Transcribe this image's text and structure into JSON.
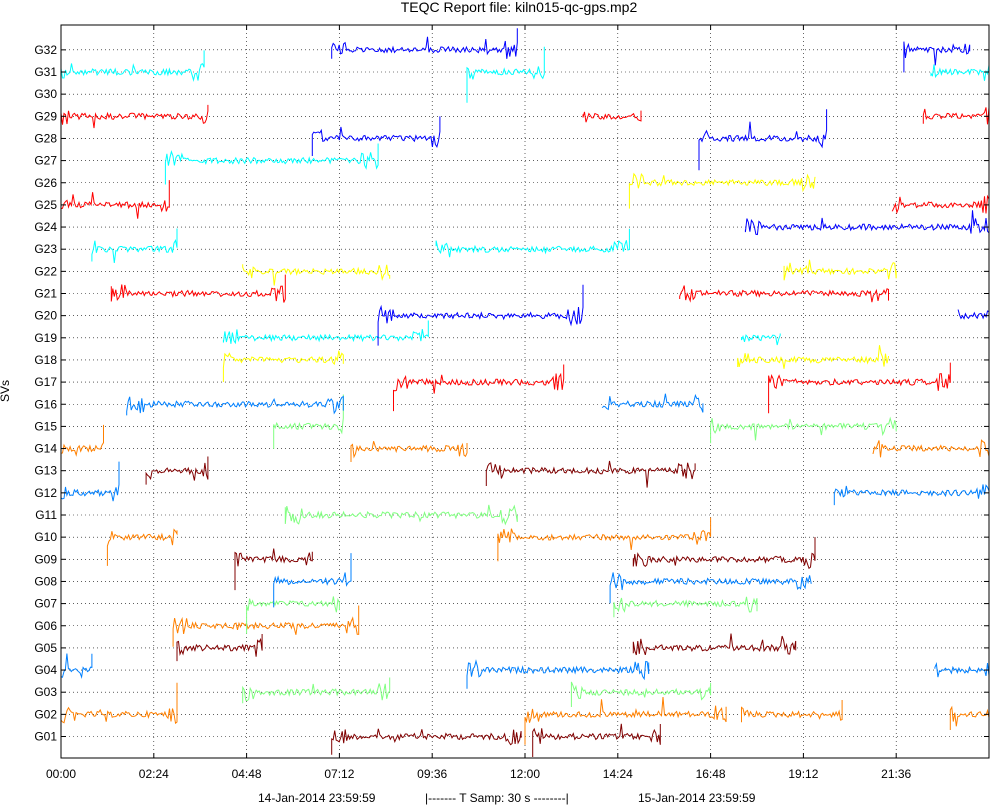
{
  "chart_data": {
    "type": "line",
    "title": "TEQC Report file: kiln015-qc-gps.mp2",
    "xlabel": "",
    "ylabel": "SVs",
    "grid": true,
    "x_range_hours": [
      0,
      24
    ],
    "x_ticks": [
      {
        "hour": 0,
        "label": "00:00"
      },
      {
        "hour": 2.4,
        "label": "02:24"
      },
      {
        "hour": 4.8,
        "label": "04:48"
      },
      {
        "hour": 7.2,
        "label": "07:12"
      },
      {
        "hour": 9.6,
        "label": "09:36"
      },
      {
        "hour": 12.0,
        "label": "12:00"
      },
      {
        "hour": 14.4,
        "label": "14:24"
      },
      {
        "hour": 16.8,
        "label": "16:48"
      },
      {
        "hour": 19.2,
        "label": "19:12"
      },
      {
        "hour": 21.6,
        "label": "21:36"
      }
    ],
    "y_labels": [
      "G01",
      "G02",
      "G03",
      "G04",
      "G05",
      "G06",
      "G07",
      "G08",
      "G09",
      "G10",
      "G11",
      "G12",
      "G13",
      "G14",
      "G15",
      "G16",
      "G17",
      "G18",
      "G19",
      "G20",
      "G21",
      "G22",
      "G23",
      "G24",
      "G25",
      "G26",
      "G27",
      "G28",
      "G29",
      "G30",
      "G31",
      "G32"
    ],
    "series": [
      {
        "name": "G01",
        "color": "#800000",
        "segments": [
          [
            7.0,
            11.9
          ],
          [
            12.2,
            15.5
          ]
        ]
      },
      {
        "name": "G02",
        "color": "#ff8000",
        "segments": [
          [
            0.0,
            3.0
          ],
          [
            12.0,
            17.2
          ],
          [
            17.6,
            20.2
          ],
          [
            23.0,
            24.0
          ]
        ]
      },
      {
        "name": "G03",
        "color": "#80ff80",
        "segments": [
          [
            4.7,
            8.5
          ],
          [
            13.2,
            16.8
          ]
        ]
      },
      {
        "name": "G04",
        "color": "#0080ff",
        "segments": [
          [
            0.0,
            0.8
          ],
          [
            10.5,
            15.2
          ],
          [
            22.6,
            24.0
          ]
        ]
      },
      {
        "name": "G05",
        "color": "#800000",
        "segments": [
          [
            3.0,
            5.2
          ],
          [
            14.8,
            19.0
          ]
        ]
      },
      {
        "name": "G06",
        "color": "#ff8000",
        "segments": [
          [
            2.9,
            7.7
          ]
        ]
      },
      {
        "name": "G07",
        "color": "#80ff80",
        "segments": [
          [
            4.8,
            7.2
          ],
          [
            14.3,
            18.0
          ]
        ]
      },
      {
        "name": "G08",
        "color": "#0080ff",
        "segments": [
          [
            5.5,
            7.5
          ],
          [
            14.2,
            19.4
          ]
        ]
      },
      {
        "name": "G09",
        "color": "#800000",
        "segments": [
          [
            4.5,
            6.5
          ],
          [
            14.8,
            19.5
          ]
        ]
      },
      {
        "name": "G10",
        "color": "#ff8000",
        "segments": [
          [
            1.2,
            3.0
          ],
          [
            11.3,
            16.8
          ]
        ]
      },
      {
        "name": "G11",
        "color": "#80ff80",
        "segments": [
          [
            5.8,
            11.8
          ]
        ]
      },
      {
        "name": "G12",
        "color": "#0080ff",
        "segments": [
          [
            0.0,
            1.5
          ],
          [
            20.0,
            24.0
          ]
        ]
      },
      {
        "name": "G13",
        "color": "#800000",
        "segments": [
          [
            2.2,
            3.8
          ],
          [
            11.0,
            16.4
          ]
        ]
      },
      {
        "name": "G14",
        "color": "#ff8000",
        "segments": [
          [
            0.0,
            1.1
          ],
          [
            7.5,
            10.5
          ],
          [
            21.0,
            24.0
          ]
        ]
      },
      {
        "name": "G15",
        "color": "#80ff80",
        "segments": [
          [
            5.5,
            7.3
          ],
          [
            16.8,
            21.6
          ]
        ]
      },
      {
        "name": "G16",
        "color": "#0080ff",
        "segments": [
          [
            1.7,
            7.3
          ],
          [
            14.0,
            16.6
          ]
        ]
      },
      {
        "name": "G17",
        "color": "#ff0000",
        "segments": [
          [
            8.6,
            13.0
          ],
          [
            18.3,
            23.0
          ]
        ]
      },
      {
        "name": "G18",
        "color": "#ffff00",
        "segments": [
          [
            4.2,
            7.3
          ],
          [
            17.5,
            21.4
          ]
        ]
      },
      {
        "name": "G19",
        "color": "#00ffff",
        "segments": [
          [
            4.2,
            9.5
          ],
          [
            17.6,
            18.6
          ]
        ]
      },
      {
        "name": "G20",
        "color": "#0000ff",
        "segments": [
          [
            8.2,
            13.5
          ],
          [
            23.2,
            24.0
          ]
        ]
      },
      {
        "name": "G21",
        "color": "#ff0000",
        "segments": [
          [
            1.3,
            5.8
          ],
          [
            16.0,
            21.4
          ]
        ]
      },
      {
        "name": "G22",
        "color": "#ffff00",
        "segments": [
          [
            4.7,
            8.5
          ],
          [
            18.7,
            21.6
          ]
        ]
      },
      {
        "name": "G23",
        "color": "#00ffff",
        "segments": [
          [
            0.8,
            3.0
          ],
          [
            9.7,
            14.7
          ]
        ]
      },
      {
        "name": "G24",
        "color": "#0000ff",
        "segments": [
          [
            17.7,
            24.0
          ]
        ]
      },
      {
        "name": "G25",
        "color": "#ff0000",
        "segments": [
          [
            0.0,
            2.8
          ],
          [
            21.5,
            24.0
          ]
        ]
      },
      {
        "name": "G26",
        "color": "#ffff00",
        "segments": [
          [
            14.7,
            19.5
          ]
        ]
      },
      {
        "name": "G27",
        "color": "#00ffff",
        "segments": [
          [
            2.7,
            8.2
          ]
        ]
      },
      {
        "name": "G28",
        "color": "#0000ff",
        "segments": [
          [
            6.5,
            9.8
          ],
          [
            16.5,
            19.8
          ]
        ]
      },
      {
        "name": "G29",
        "color": "#ff0000",
        "segments": [
          [
            0.0,
            3.8
          ],
          [
            13.5,
            15.0
          ],
          [
            22.3,
            24.0
          ]
        ]
      },
      {
        "name": "G30",
        "color": "#ff8000",
        "segments": []
      },
      {
        "name": "G31",
        "color": "#00ffff",
        "segments": [
          [
            0.0,
            3.7
          ],
          [
            10.5,
            12.5
          ],
          [
            22.5,
            24.0
          ]
        ]
      },
      {
        "name": "G32",
        "color": "#0000ff",
        "segments": [
          [
            7.0,
            11.8
          ],
          [
            21.8,
            23.5
          ]
        ]
      }
    ],
    "footer": {
      "start": "14-Jan-2014 23:59:59",
      "sample": "|-------  T Samp: 30 s  --------|",
      "end": "15-Jan-2014 23:59:59"
    }
  }
}
